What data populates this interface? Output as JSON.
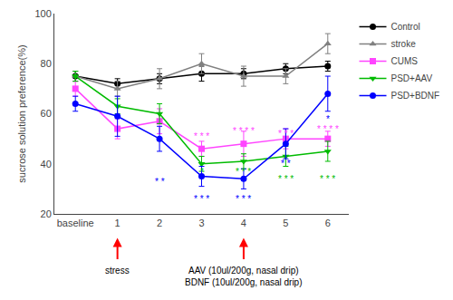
{
  "chart_data": {
    "type": "line",
    "categories": [
      "baseline",
      "1",
      "2",
      "3",
      "4",
      "5",
      "6"
    ],
    "ylabel": "sucrose solution preference(%)",
    "ylim": [
      20,
      100
    ],
    "yticks": [
      20,
      40,
      60,
      80,
      100
    ],
    "grid": false,
    "legend": "right",
    "series": [
      {
        "name": "Control",
        "color": "#000000",
        "marker": "circle",
        "line_style": "solid",
        "values": [
          75,
          72,
          74,
          76,
          76,
          78,
          79
        ],
        "errors": [
          2,
          2,
          2,
          3,
          2,
          2,
          2
        ]
      },
      {
        "name": "stroke",
        "color": "#808080",
        "marker": "triangle-up",
        "line_style": "solid",
        "values": [
          75,
          70,
          74,
          80,
          75,
          75,
          88
        ],
        "errors": [
          2,
          3,
          4,
          4,
          4,
          3,
          4
        ]
      },
      {
        "name": "CUMS",
        "color": "#ff44ff",
        "marker": "square",
        "line_style": "solid",
        "values": [
          70,
          54,
          57,
          46,
          48,
          50,
          50
        ],
        "errors": [
          3,
          4,
          5,
          3,
          5,
          4,
          3
        ]
      },
      {
        "name": "PSD+AAV",
        "color": "#00bb00",
        "marker": "triangle-down",
        "line_style": "solid",
        "values": [
          75,
          63,
          60,
          40,
          41,
          43,
          45
        ],
        "errors": [
          2,
          3,
          4,
          3,
          3,
          4,
          4
        ]
      },
      {
        "name": "PSD+BDNF",
        "color": "#0000ff",
        "marker": "circle",
        "line_style": "solid",
        "values": [
          64,
          59,
          50,
          35,
          34,
          48,
          68
        ],
        "errors": [
          3,
          8,
          5,
          4,
          4,
          6,
          7
        ]
      }
    ],
    "annotations": [
      {
        "text": "* * *",
        "x": "3",
        "y": 51,
        "color": "#ff44ff"
      },
      {
        "text": "* * * *",
        "x": "4",
        "y": 53,
        "color": "#ff44ff"
      },
      {
        "text": "* * *",
        "x": "5",
        "y": 52,
        "color": "#ff44ff"
      },
      {
        "text": "* * * *",
        "x": "6",
        "y": 54,
        "color": "#ff44ff"
      },
      {
        "text": "*",
        "x": "3",
        "y": 37,
        "color": "#00bb00"
      },
      {
        "text": "* * *",
        "x": "4",
        "y": 37,
        "color": "#00bb00"
      },
      {
        "text": "* * *",
        "x": "5",
        "y": 34,
        "color": "#00bb00"
      },
      {
        "text": "* * *",
        "x": "6",
        "y": 34,
        "color": "#00bb00"
      },
      {
        "text": "* *",
        "x": "2",
        "y": 33,
        "color": "#0000ff"
      },
      {
        "text": "* * *",
        "x": "3",
        "y": 26,
        "color": "#0000ff"
      },
      {
        "text": "* * *",
        "x": "4",
        "y": 26,
        "color": "#0000ff"
      },
      {
        "text": "* *",
        "x": "5",
        "y": 40,
        "color": "#0000ff"
      },
      {
        "text": "*",
        "x": "6",
        "y": 58,
        "color": "#0000ff"
      }
    ],
    "arrow_labels": [
      {
        "text": "stress",
        "x": "1",
        "color": "#ff0000"
      },
      {
        "text": "AAV (10ul/200g, nasal drip)\nBDNF (10ul/200g, nasal drip)",
        "x": "4",
        "color": "#ff0000"
      }
    ]
  }
}
